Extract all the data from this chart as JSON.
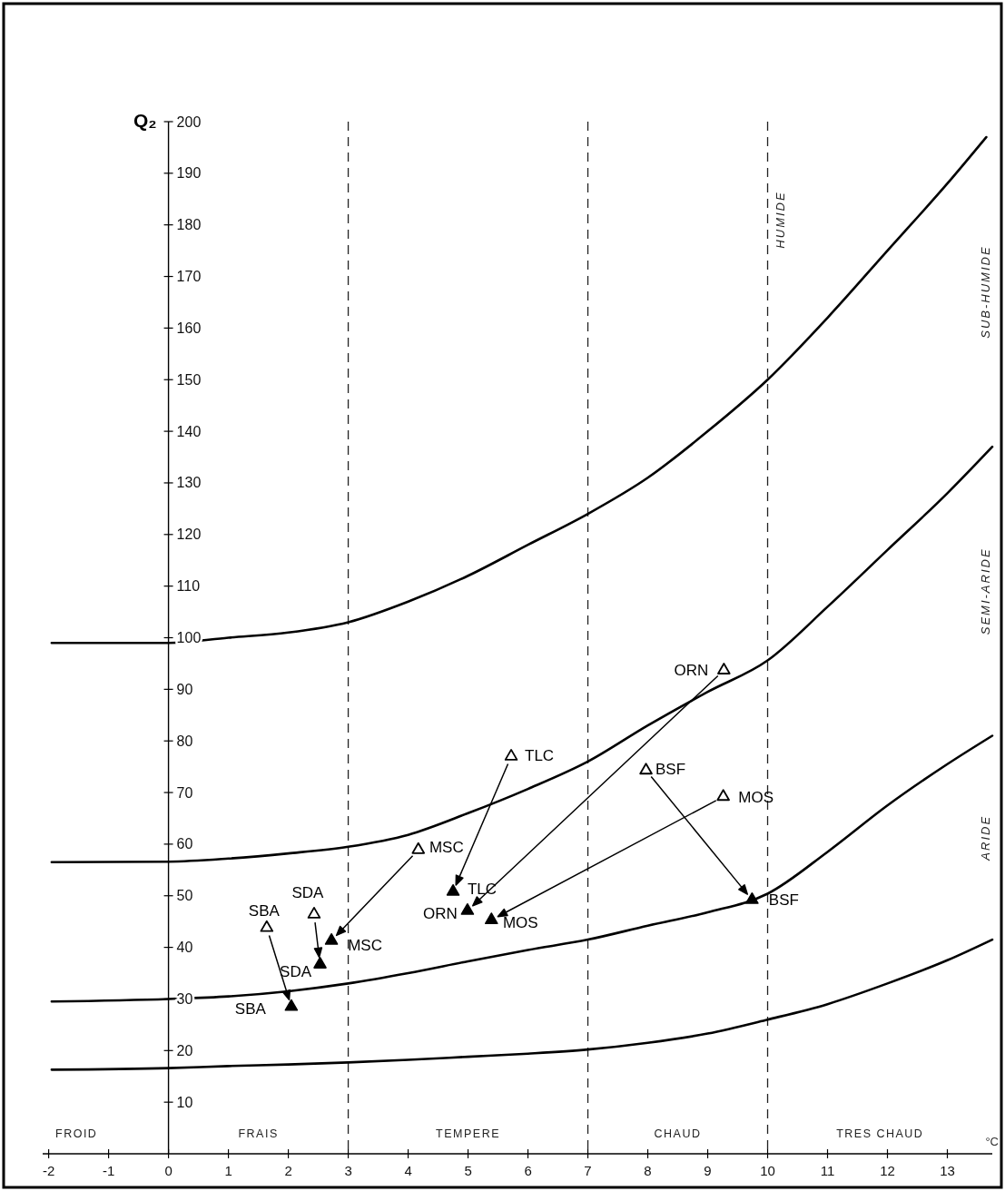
{
  "chart_data": {
    "type": "scatter",
    "xlabel": "°C",
    "ylabel": "Q₂",
    "xlim": [
      -2.1,
      13.75
    ],
    "ylim": [
      0,
      200
    ],
    "xticks": [
      -2,
      -1,
      0,
      1,
      2,
      3,
      4,
      5,
      6,
      7,
      8,
      9,
      10,
      11,
      12,
      13
    ],
    "yticks": [
      10,
      20,
      30,
      40,
      50,
      60,
      70,
      80,
      90,
      100,
      110,
      120,
      130,
      140,
      150,
      160,
      170,
      180,
      190,
      200
    ],
    "marker": "triangle",
    "ref_lines": [
      {
        "axis": "x",
        "value": 3,
        "line_style": "dashed"
      },
      {
        "axis": "x",
        "value": 7,
        "line_style": "dashed"
      },
      {
        "axis": "x",
        "value": 10,
        "line_style": "dashed"
      }
    ],
    "series": [
      {
        "type": "line",
        "marker": "none",
        "color": "#000000",
        "x": [
          -1.95,
          0,
          1,
          2,
          3,
          4,
          5,
          6,
          7,
          8,
          9,
          10,
          11,
          12,
          13,
          13.65
        ],
        "values": [
          99,
          99,
          100,
          101,
          103,
          107,
          112,
          118,
          124,
          131,
          140,
          150,
          162,
          175,
          188,
          197
        ]
      },
      {
        "type": "line",
        "marker": "none",
        "color": "#000000",
        "x": [
          -1.95,
          0,
          1,
          2,
          3,
          4,
          5,
          6,
          7,
          8,
          9,
          10,
          11,
          12,
          13,
          13.75
        ],
        "values": [
          56.5,
          56.6,
          57.2,
          58.2,
          59.5,
          61.8,
          66,
          70.7,
          76,
          83,
          89.5,
          95.6,
          106,
          117,
          128,
          137
        ]
      },
      {
        "type": "line",
        "marker": "none",
        "color": "#000000",
        "x": [
          -1.95,
          0,
          1,
          2,
          3,
          4,
          5,
          6,
          7,
          8,
          9,
          10,
          11,
          12,
          13,
          13.75
        ],
        "values": [
          29.5,
          30,
          30.5,
          31.5,
          33,
          35,
          37.3,
          39.5,
          41.5,
          44.2,
          46.8,
          50.4,
          58.5,
          67.5,
          75.5,
          81
        ]
      },
      {
        "type": "line",
        "marker": "none",
        "color": "#000000",
        "x": [
          -1.95,
          0,
          1,
          2,
          3,
          4,
          5,
          6,
          7,
          8,
          9,
          10,
          11,
          12,
          13,
          13.75
        ],
        "values": [
          16.3,
          16.6,
          17,
          17.3,
          17.7,
          18.2,
          18.8,
          19.4,
          20.2,
          21.5,
          23.3,
          26,
          29,
          33,
          37.5,
          41.5
        ]
      },
      {
        "color": "#ffffff",
        "x": [
          1.64,
          2.43,
          4.17,
          5.72,
          9.27,
          9.26,
          7.97
        ],
        "values": [
          43.8,
          46.4,
          58.9,
          77,
          93.7,
          69.2,
          74.3
        ]
      },
      {
        "color": "#000000",
        "x": [
          2.05,
          2.53,
          2.72,
          4.75,
          4.99,
          5.39,
          9.74
        ],
        "values": [
          28.5,
          36.7,
          41.3,
          50.8,
          47.1,
          45.3,
          49.2
        ]
      }
    ],
    "annotations": [
      {
        "text": "SBA",
        "x": 1.64,
        "y": 43.8
      },
      {
        "text": "SDA",
        "x": 2.43,
        "y": 46.4
      },
      {
        "text": "MSC",
        "x": 4.17,
        "y": 58.9
      },
      {
        "text": "TLC",
        "x": 5.72,
        "y": 77
      },
      {
        "text": "ORN",
        "x": 9.27,
        "y": 93.7
      },
      {
        "text": "MOS",
        "x": 9.26,
        "y": 69.2
      },
      {
        "text": "BSF",
        "x": 7.97,
        "y": 74.3
      },
      {
        "text": "SBA",
        "x": 2.05,
        "y": 28.5
      },
      {
        "text": "SDA",
        "x": 2.53,
        "y": 36.7
      },
      {
        "text": "MSC",
        "x": 2.72,
        "y": 41.3
      },
      {
        "text": "TLC",
        "x": 4.75,
        "y": 50.8
      },
      {
        "text": "ORN",
        "x": 4.99,
        "y": 47.1
      },
      {
        "text": "MOS",
        "x": 5.39,
        "y": 45.3
      },
      {
        "text": "BSF",
        "x": 9.74,
        "y": 49.2
      },
      "FROID",
      "FRAIS",
      "TEMPERE",
      "CHAUD",
      "TRES CHAUD",
      "HUMIDE",
      "SUB-HUMIDE",
      "SEMI-ARIDE",
      "ARIDE"
    ]
  }
}
